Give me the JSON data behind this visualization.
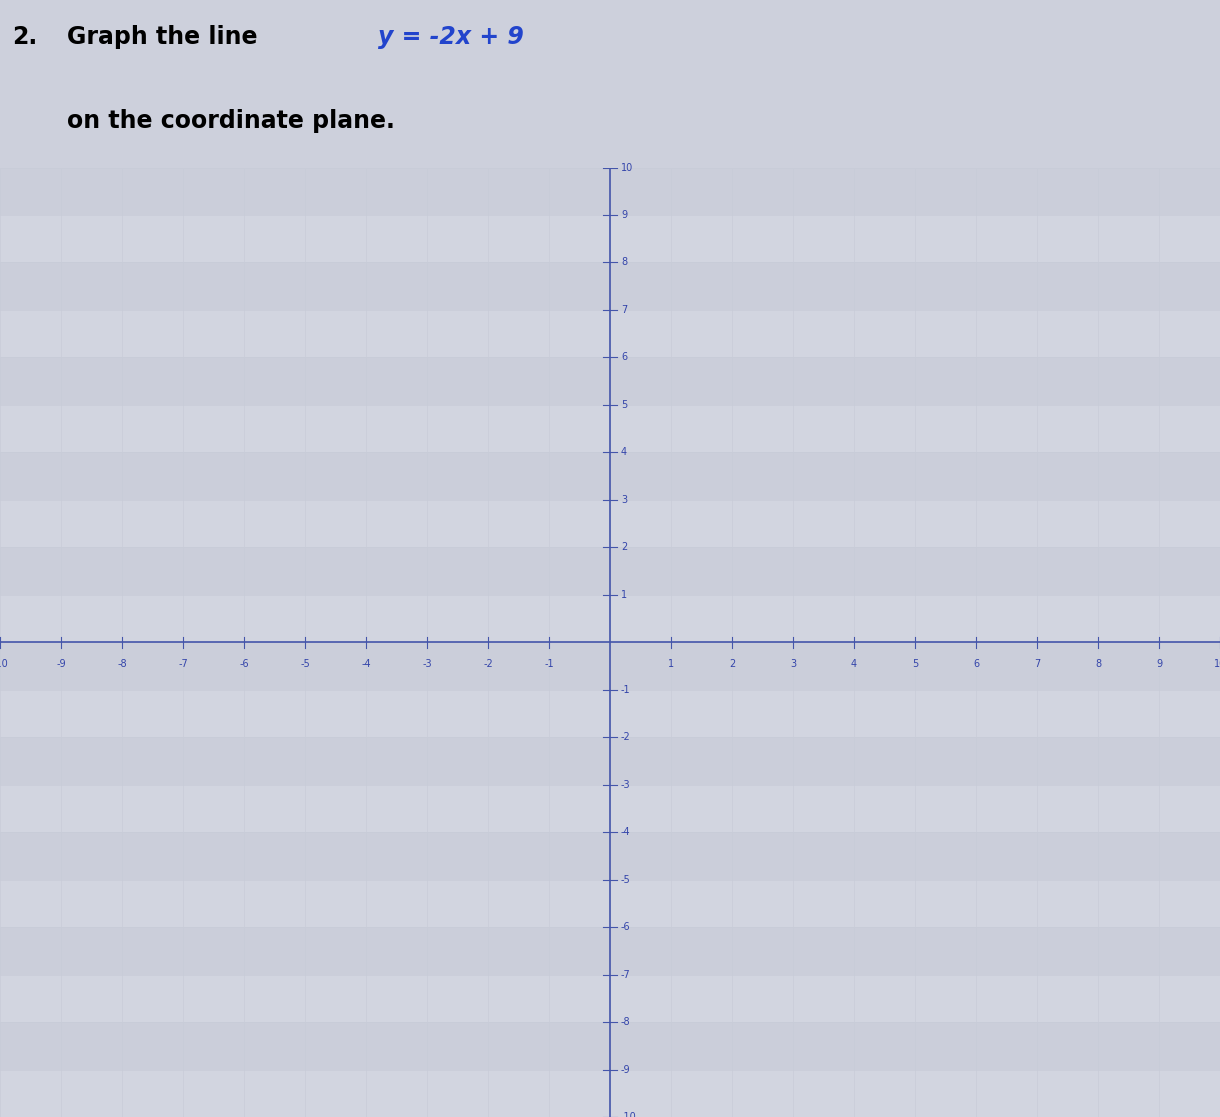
{
  "equation_slope": -2,
  "equation_intercept": 9,
  "x_min": -10,
  "x_max": 10,
  "y_min": -10,
  "y_max": 10,
  "grid_minor_color": "#c8ccd8",
  "grid_major_color": "#a8afc8",
  "axis_color": "#4455aa",
  "background_color": "#cdd0dc",
  "panel_bg_light": "#dcdfe8",
  "panel_bg_dark": "#c8ccd8",
  "title_color": "#111111",
  "equation_color": "#2244cc",
  "tick_label_color": "#3344aa",
  "tick_fontsize": 7,
  "title_fontsize": 17,
  "figsize": [
    12.2,
    11.17
  ],
  "dpi": 100,
  "title_text": "2. Graph the line ",
  "equation_text": "y = -2x + 9",
  "subtitle_text": "on the coordinate plane."
}
